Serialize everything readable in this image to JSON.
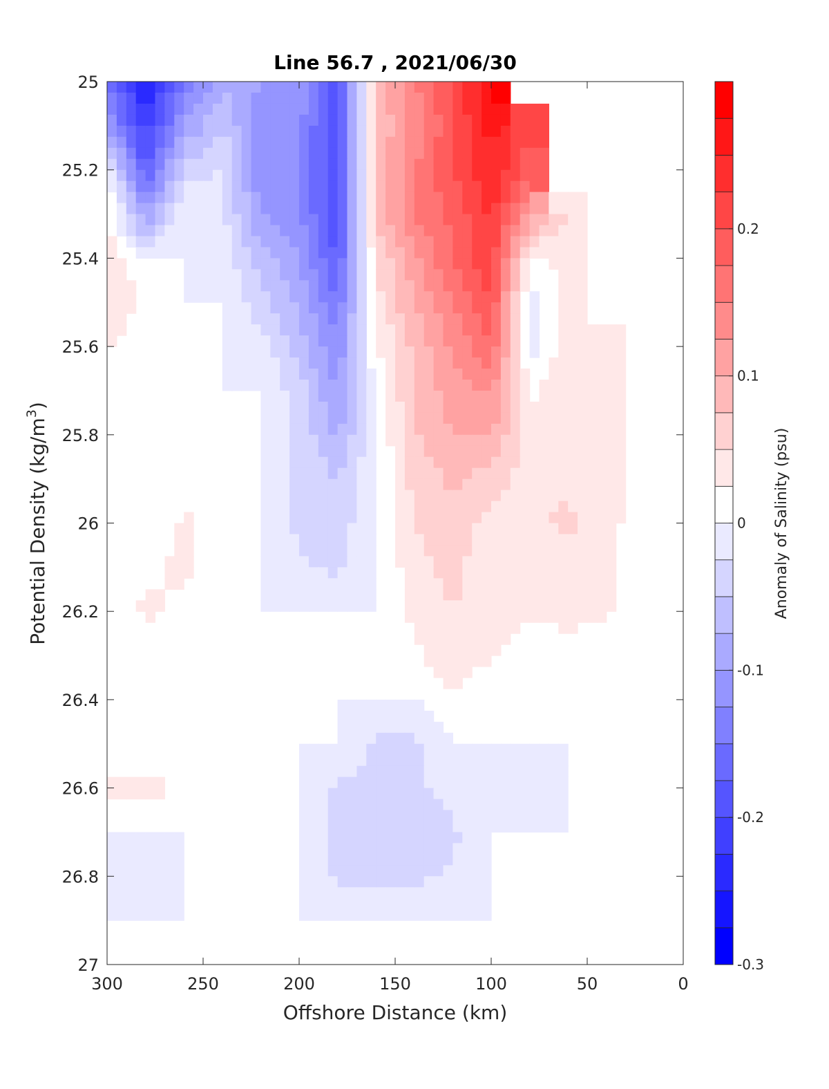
{
  "chart_data": {
    "type": "heatmap",
    "title": "Line 56.7 , 2021/06/30",
    "xlabel": "Offshore Distance (km)",
    "ylabel": "Potential Density (kg/m",
    "ylabel_sup": "3",
    "ylabel_end": ")",
    "colorbar_label": "Anomaly of Salinity (psu)",
    "xlim": [
      300,
      0
    ],
    "ylim": [
      25,
      27
    ],
    "x_reversed": true,
    "y_reversed": true,
    "xticks": [
      "300",
      "250",
      "200",
      "150",
      "100",
      "50",
      "0"
    ],
    "xtick_values": [
      300,
      250,
      200,
      150,
      100,
      50,
      0
    ],
    "yticks": [
      "25",
      "25.2",
      "25.4",
      "25.6",
      "25.8",
      "26",
      "26.2",
      "26.4",
      "26.6",
      "26.8",
      "27"
    ],
    "ytick_values": [
      25,
      25.2,
      25.4,
      25.6,
      25.8,
      26,
      26.2,
      26.4,
      26.6,
      26.8,
      27
    ],
    "clim": [
      -0.3,
      0.3
    ],
    "contour_step": 0.025,
    "cbticks": [
      "-0.3",
      "-0.2",
      "-0.1",
      "0",
      "0.1",
      "0.2"
    ],
    "cbtick_values": [
      -0.3,
      -0.2,
      -0.1,
      0,
      0.1,
      0.2
    ],
    "colormap": {
      "negative": "#0000ff",
      "zero": "#ffffff",
      "positive": "#ff0000"
    },
    "x": [
      300,
      280,
      260,
      240,
      220,
      200,
      180,
      160,
      140,
      120,
      100,
      80,
      60,
      40,
      20,
      0
    ],
    "y": [
      25.0,
      25.1,
      25.2,
      25.3,
      25.4,
      25.5,
      25.6,
      25.7,
      25.8,
      25.9,
      26.0,
      26.1,
      26.2,
      26.3,
      26.4,
      26.5,
      26.6,
      26.7,
      26.8,
      26.9
    ],
    "z": [
      [
        -0.15,
        -0.25,
        -0.15,
        -0.08,
        -0.1,
        -0.1,
        -0.2,
        0.08,
        0.15,
        0.2,
        0.28,
        null,
        null,
        null,
        null,
        null
      ],
      [
        -0.1,
        -0.22,
        -0.1,
        -0.05,
        -0.12,
        -0.12,
        -0.2,
        0.08,
        0.13,
        0.2,
        0.26,
        0.2,
        null,
        null,
        null,
        null
      ],
      [
        0.0,
        -0.18,
        -0.04,
        -0.02,
        -0.12,
        -0.12,
        -0.2,
        0.08,
        0.15,
        0.2,
        0.25,
        0.18,
        null,
        null,
        null,
        null
      ],
      [
        0.03,
        -0.1,
        0.0,
        -0.02,
        -0.1,
        -0.12,
        -0.2,
        0.08,
        0.15,
        0.18,
        0.23,
        0.12,
        0.05,
        null,
        null,
        null
      ],
      [
        0.04,
        0.0,
        0.0,
        -0.01,
        -0.06,
        -0.1,
        -0.18,
        0.05,
        0.12,
        0.18,
        0.22,
        0.02,
        0.03,
        null,
        null,
        null
      ],
      [
        0.05,
        0.02,
        0.0,
        0.0,
        -0.04,
        -0.08,
        -0.15,
        0.04,
        0.1,
        0.15,
        0.2,
        -0.01,
        0.04,
        null,
        null,
        null
      ],
      [
        0.03,
        0.0,
        0.0,
        0.0,
        -0.01,
        -0.06,
        -0.12,
        0.02,
        0.08,
        0.13,
        0.17,
        -0.01,
        0.04,
        0.03,
        null,
        null
      ],
      [
        0.0,
        0.0,
        0.0,
        0.0,
        0.0,
        -0.04,
        -0.1,
        0.01,
        0.08,
        0.11,
        0.13,
        0.02,
        0.04,
        0.03,
        null,
        null
      ],
      [
        0.0,
        0.0,
        0.0,
        0.0,
        0.0,
        -0.03,
        -0.08,
        0.0,
        0.07,
        0.1,
        0.1,
        0.04,
        0.03,
        0.03,
        null,
        null
      ],
      [
        0.0,
        0.0,
        0.01,
        0.0,
        0.0,
        -0.03,
        -0.05,
        0.0,
        0.06,
        0.08,
        0.06,
        0.04,
        0.04,
        0.03,
        null,
        null
      ],
      [
        0.0,
        0.0,
        0.03,
        0.01,
        0.0,
        -0.03,
        -0.04,
        0.0,
        0.05,
        0.07,
        0.04,
        0.04,
        0.06,
        0.03,
        0.0,
        0.0
      ],
      [
        0.02,
        0.02,
        0.03,
        0.0,
        0.0,
        -0.02,
        -0.03,
        0.0,
        0.04,
        0.06,
        0.03,
        0.03,
        0.03,
        0.03,
        0.0,
        0.0
      ],
      [
        0.0,
        0.03,
        0.02,
        0.0,
        0.0,
        0.0,
        0.0,
        0.0,
        0.03,
        0.05,
        0.03,
        0.03,
        0.03,
        0.03,
        0.0,
        0.0
      ],
      [
        0.0,
        0.0,
        0.0,
        0.0,
        0.0,
        0.0,
        0.0,
        0.0,
        0.02,
        0.04,
        0.03,
        0.01,
        0.02,
        0.0,
        0.0,
        0.0
      ],
      [
        0.0,
        0.0,
        0.0,
        0.0,
        0.0,
        0.0,
        0.0,
        0.0,
        0.0,
        0.02,
        0.0,
        0.0,
        0.0,
        0.0,
        0.0,
        0.0
      ],
      [
        0.0,
        0.0,
        0.0,
        0.0,
        0.0,
        0.0,
        0.0,
        -0.03,
        -0.03,
        0.0,
        0.0,
        0.0,
        0.0,
        0.0,
        0.0,
        0.0
      ],
      [
        0.03,
        0.04,
        0.02,
        0.0,
        0.0,
        0.0,
        -0.03,
        -0.03,
        -0.03,
        -0.01,
        0.0,
        -0.02,
        0.0,
        0.0,
        0.0,
        0.0
      ],
      [
        0.0,
        0.0,
        0.0,
        0.0,
        0.0,
        0.0,
        -0.03,
        -0.03,
        -0.05,
        -0.03,
        0.0,
        0.0,
        0.0,
        0.0,
        0.0,
        0.0
      ],
      [
        -0.02,
        -0.02,
        0.0,
        0.0,
        0.0,
        0.0,
        -0.03,
        -0.03,
        -0.03,
        -0.02,
        0.0,
        0.0,
        0.0,
        0.0,
        0.0,
        0.0
      ],
      [
        0.0,
        0.0,
        0.0,
        0.0,
        0.0,
        0.0,
        0.0,
        -0.01,
        0.0,
        0.0,
        0.0,
        0.0,
        0.0,
        0.0,
        0.0,
        0.0
      ]
    ]
  }
}
